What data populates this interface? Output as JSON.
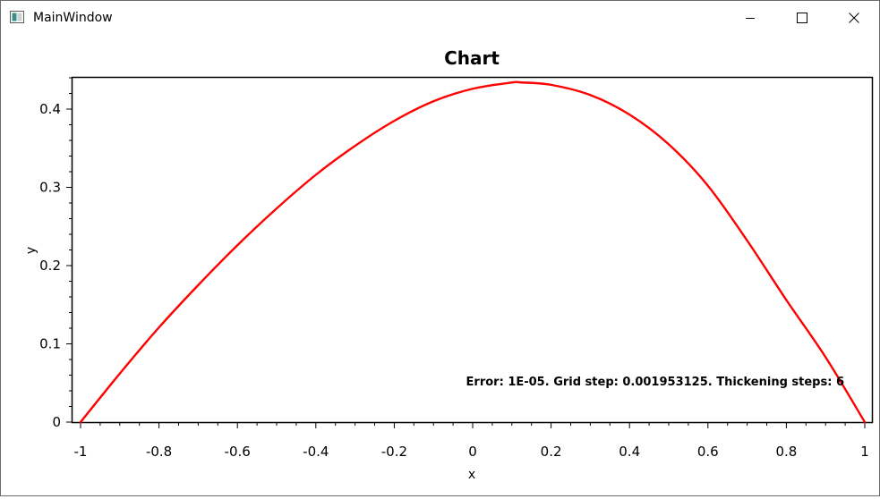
{
  "window": {
    "title": "MainWindow",
    "controls": {
      "minimize_icon": "minimize-icon",
      "maximize_icon": "maximize-icon",
      "close_icon": "close-icon"
    }
  },
  "chart_data": {
    "type": "line",
    "title": "Chart",
    "xlabel": "x",
    "ylabel": "y",
    "xlim": [
      -1,
      1
    ],
    "ylim": [
      0,
      0.44
    ],
    "x_ticks": [
      "-1",
      "-0.8",
      "-0.6",
      "-0.4",
      "-0.2",
      "0",
      "0.2",
      "0.4",
      "0.6",
      "0.8",
      "1"
    ],
    "y_ticks": [
      "0",
      "0.1",
      "0.2",
      "0.3",
      "0.4"
    ],
    "grid": false,
    "annotation": "Error: 1E-05. Grid step: 0.001953125. Thickening steps: 6",
    "series": [
      {
        "color": "#ff0000",
        "x": [
          -1,
          -0.9,
          -0.8,
          -0.7,
          -0.6,
          -0.5,
          -0.4,
          -0.3,
          -0.2,
          -0.1,
          0,
          0.1,
          0.125,
          0.2,
          0.3,
          0.4,
          0.5,
          0.6,
          0.7,
          0.8,
          0.9,
          1
        ],
        "y": [
          0,
          0.062,
          0.121,
          0.175,
          0.226,
          0.273,
          0.316,
          0.353,
          0.385,
          0.41,
          0.426,
          0.434,
          0.434,
          0.431,
          0.418,
          0.393,
          0.355,
          0.302,
          0.232,
          0.156,
          0.083,
          0
        ]
      }
    ]
  }
}
